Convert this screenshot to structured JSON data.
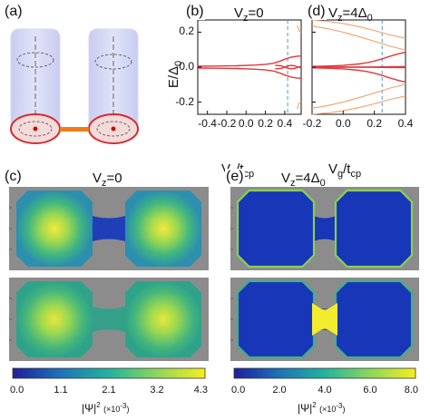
{
  "panels": {
    "a": "(a)",
    "b": "(b)",
    "c": "(c)",
    "d": "(d)",
    "e": "(e)"
  },
  "titles": {
    "b": {
      "var": "V",
      "sub": "z",
      "rest": "=0"
    },
    "d": {
      "var": "V",
      "sub": "z",
      "rest": "=4Δ",
      "sub2": "0"
    },
    "c": {
      "var": "V",
      "sub": "z",
      "rest": "=0"
    },
    "e": {
      "var": "V",
      "sub": "z",
      "rest": "=4Δ",
      "sub2": "0"
    }
  },
  "ylabel": {
    "main": "E/Δ",
    "sub": "0"
  },
  "xlabel": {
    "main": "V",
    "sub": "g",
    "mid": "/t",
    "sub2": "cp"
  },
  "colors": {
    "red": "#e0383c",
    "orange": "#f2a06d",
    "dash": "#4f95cf",
    "gray": "#8c8c8c"
  },
  "chart_data": [
    {
      "type": "line",
      "panel": "b",
      "xlim": [
        -0.5,
        0.57
      ],
      "ylim": [
        -0.27,
        0.27
      ],
      "xticks": [
        -0.4,
        -0.2,
        0.0,
        0.2,
        0.4
      ],
      "xtick_labels": [
        "-0.4",
        "-0.2",
        "0.0",
        "0.2",
        "0.4"
      ],
      "yticks": [
        -0.2,
        0.0,
        0.2
      ],
      "ytick_labels": [
        "-0.2",
        "0.0",
        "0.2"
      ],
      "vline_x": 0.43,
      "series": [
        {
          "color": "red",
          "x": [
            -0.5,
            -0.3,
            -0.1,
            0.1,
            0.2,
            0.28,
            0.34,
            0.4,
            0.46,
            0.52,
            0.57
          ],
          "y": [
            0.005,
            0.006,
            0.008,
            0.012,
            0.016,
            0.022,
            0.032,
            0.045,
            0.056,
            0.062,
            0.064
          ]
        },
        {
          "color": "red",
          "x": [
            -0.5,
            -0.3,
            -0.1,
            0.1,
            0.2,
            0.28,
            0.34,
            0.4,
            0.46,
            0.52,
            0.57
          ],
          "y": [
            -0.005,
            -0.006,
            -0.008,
            -0.012,
            -0.016,
            -0.022,
            -0.032,
            -0.045,
            -0.056,
            -0.062,
            -0.064
          ]
        },
        {
          "color": "red",
          "x": [
            0.3,
            0.36,
            0.42,
            0.46,
            0.5,
            0.54,
            0.57
          ],
          "y": [
            0.01,
            0.008,
            -0.004,
            -0.01,
            -0.008,
            0.0,
            0.004
          ]
        },
        {
          "color": "red",
          "x": [
            0.3,
            0.36,
            0.42,
            0.46,
            0.5,
            0.54,
            0.57
          ],
          "y": [
            -0.01,
            -0.008,
            0.004,
            0.01,
            0.008,
            0.0,
            -0.004
          ]
        },
        {
          "color": "orange",
          "x": [
            0.53,
            0.55,
            0.57
          ],
          "y": [
            0.24,
            0.205,
            0.2
          ]
        },
        {
          "color": "orange",
          "x": [
            0.53,
            0.55,
            0.57
          ],
          "y": [
            -0.24,
            -0.205,
            -0.2
          ]
        }
      ]
    },
    {
      "type": "line",
      "panel": "d",
      "xlim": [
        -0.2,
        0.4
      ],
      "ylim": [
        -0.27,
        0.27
      ],
      "xticks": [
        -0.2,
        0.0,
        0.2,
        0.4
      ],
      "xtick_labels": [
        "-0.2",
        "0.0",
        "0.2",
        "0.4"
      ],
      "yticks": [
        -0.2,
        0.0,
        0.2
      ],
      "vline_x": 0.25,
      "series": [
        {
          "color": "orange",
          "x": [
            -0.2,
            -0.1,
            0.0,
            0.1,
            0.2,
            0.3,
            0.4
          ],
          "y": [
            0.27,
            0.262,
            0.25,
            0.232,
            0.21,
            0.185,
            0.165
          ]
        },
        {
          "color": "orange",
          "x": [
            -0.2,
            -0.1,
            0.0,
            0.1,
            0.2,
            0.3,
            0.4
          ],
          "y": [
            -0.27,
            -0.262,
            -0.25,
            -0.232,
            -0.21,
            -0.185,
            -0.165
          ]
        },
        {
          "color": "orange",
          "x": [
            -0.2,
            -0.1,
            0.0,
            0.1,
            0.2,
            0.3,
            0.4
          ],
          "y": [
            0.235,
            0.22,
            0.2,
            0.175,
            0.148,
            0.12,
            0.098
          ]
        },
        {
          "color": "orange",
          "x": [
            -0.2,
            -0.1,
            0.0,
            0.1,
            0.2,
            0.3,
            0.4
          ],
          "y": [
            -0.235,
            -0.22,
            -0.2,
            -0.175,
            -0.148,
            -0.12,
            -0.098
          ]
        },
        {
          "color": "red",
          "x": [
            -0.2,
            -0.1,
            0.0,
            0.1,
            0.15,
            0.2,
            0.25,
            0.3,
            0.35,
            0.4
          ],
          "y": [
            0.004,
            0.006,
            0.01,
            0.018,
            0.025,
            0.035,
            0.048,
            0.062,
            0.075,
            0.085
          ]
        },
        {
          "color": "red",
          "x": [
            -0.2,
            -0.1,
            0.0,
            0.1,
            0.15,
            0.2,
            0.25,
            0.3,
            0.35,
            0.4
          ],
          "y": [
            -0.004,
            -0.006,
            -0.01,
            -0.018,
            -0.025,
            -0.035,
            -0.048,
            -0.062,
            -0.075,
            -0.085
          ]
        },
        {
          "color": "red",
          "x": [
            -0.2,
            0.0,
            0.2,
            0.3,
            0.4
          ],
          "y": [
            0.0,
            0.0,
            0.001,
            0.002,
            0.003
          ]
        },
        {
          "color": "red",
          "x": [
            -0.2,
            0.0,
            0.2,
            0.3,
            0.4
          ],
          "y": [
            -0.0,
            -0.0,
            -0.001,
            -0.002,
            -0.003
          ]
        }
      ]
    },
    {
      "type": "heatmap",
      "panel": "c",
      "colormap": "viridis",
      "colorbar": {
        "range": [
          0.0,
          4.3
        ],
        "ticks": [
          "0.0",
          "1.1",
          "2.1",
          "3.2",
          "4.3"
        ]
      },
      "maps": [
        {
          "lobe_peak": 4.3,
          "lobe_edge": 0.0,
          "bridge": 0.0
        },
        {
          "lobe_peak": 4.0,
          "lobe_edge": 1.0,
          "bridge": 2.2
        }
      ]
    },
    {
      "type": "heatmap",
      "panel": "e",
      "colormap": "viridis",
      "colorbar": {
        "range": [
          0.0,
          8.0
        ],
        "ticks": [
          "0.0",
          "2.0",
          "4.0",
          "6.0",
          "8.0"
        ]
      },
      "maps": [
        {
          "lobe_peak": 0.0,
          "lobe_edge": 5.0,
          "bridge": 0.0
        },
        {
          "lobe_peak": 0.0,
          "lobe_edge": 3.0,
          "bridge": 8.0
        }
      ]
    }
  ],
  "colorbar_label": {
    "main": "|Ψ|",
    "sup": "2",
    "unit": "(×10",
    "unit_sup": "-3",
    "unit_end": ")"
  }
}
